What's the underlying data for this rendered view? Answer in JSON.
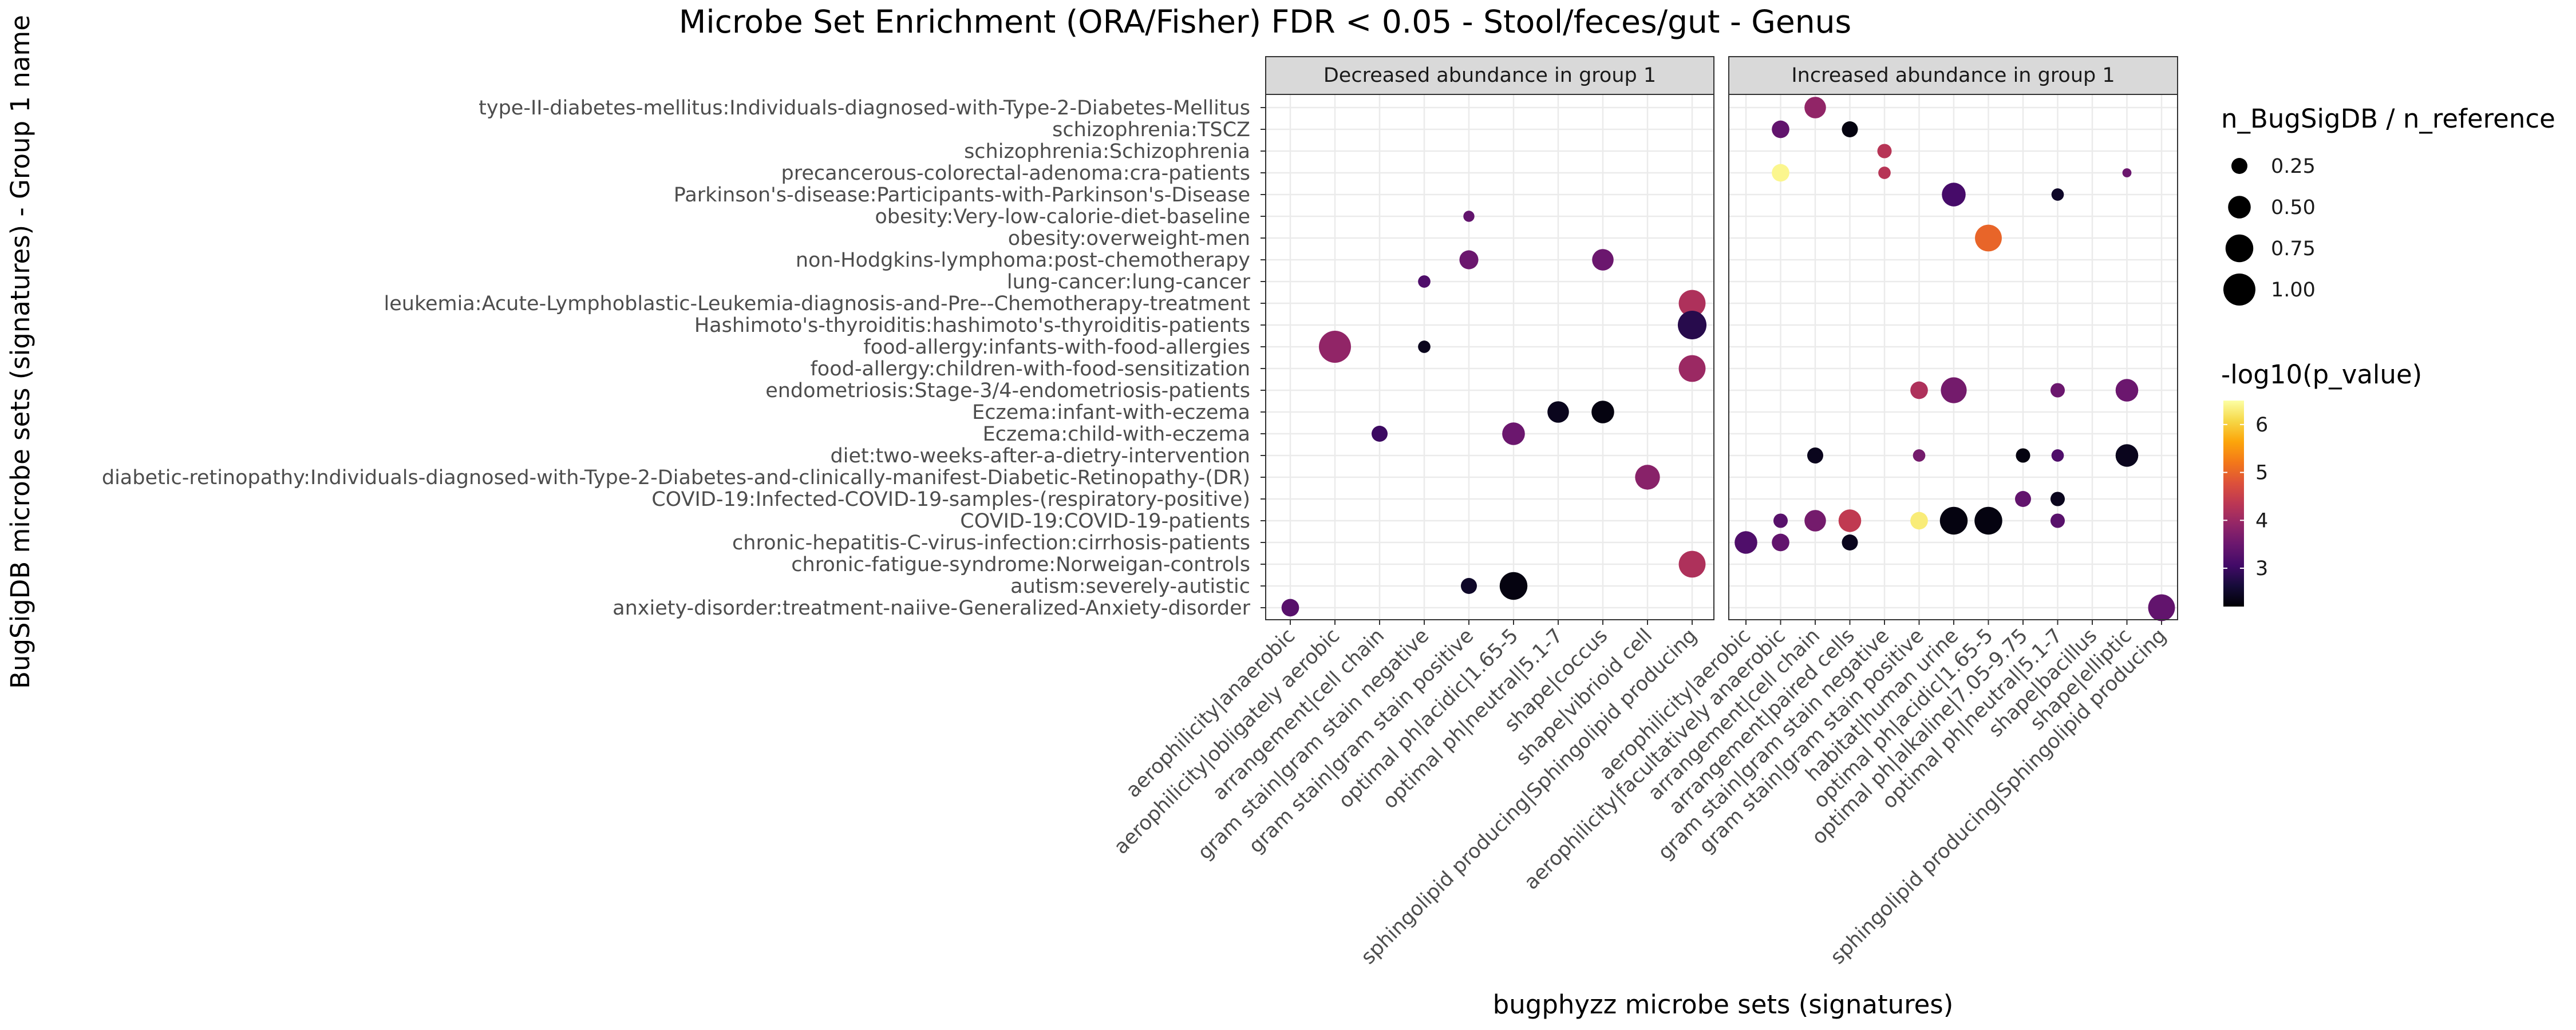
{
  "chart_data": {
    "type": "scatter",
    "title": "Microbe Set Enrichment (ORA/Fisher) FDR < 0.05 - Stool/feces/gut - Genus",
    "xlabel": "bugphyzz microbe sets (signatures)",
    "ylabel": "BugSigDB microbe sets (signatures) - Group 1 name",
    "y_categories": [
      "type-II-diabetes-mellitus:Individuals-diagnosed-with-Type-2-Diabetes-Mellitus",
      "schizophrenia:TSCZ",
      "schizophrenia:Schizophrenia",
      "precancerous-colorectal-adenoma:cra-patients",
      "Parkinson's-disease:Participants-with-Parkinson's-Disease",
      "obesity:Very-low-calorie-diet-baseline",
      "obesity:overweight-men",
      "non-Hodgkins-lymphoma:post-chemotherapy",
      "lung-cancer:lung-cancer",
      "leukemia:Acute-Lymphoblastic-Leukemia-diagnosis-and-Pre--Chemotherapy-treatment",
      "Hashimoto's-thyroiditis:hashimoto's-thyroiditis-patients",
      "food-allergy:infants-with-food-allergies",
      "food-allergy:children-with-food-sensitization",
      "endometriosis:Stage-3/4-endometriosis-patients",
      "Eczema:infant-with-eczema",
      "Eczema:child-with-eczema",
      "diet:two-weeks-after-a-dietry-intervention",
      "diabetic-retinopathy:Individuals-diagnosed-with-Type-2-Diabetes-and-clinically-manifest-Diabetic-Retinopathy-(DR)",
      "COVID-19:Infected-COVID-19-samples-(respiratory-positive)",
      "COVID-19:COVID-19-patients",
      "chronic-hepatitis-C-virus-infection:cirrhosis-patients",
      "chronic-fatigue-syndrome:Norweigan-controls",
      "autism:severely-autistic",
      "anxiety-disorder:treatment-naiive-Generalized-Anxiety-disorder"
    ],
    "panels": [
      {
        "strip": "Decreased abundance in group 1",
        "x_categories": [
          "aerophilicity|anaerobic",
          "aerophilicity|obligately aerobic",
          "arrangement|cell chain",
          "gram stain|gram stain negative",
          "gram stain|gram stain positive",
          "optimal ph|acidic|1.65-5",
          "optimal ph|neutral|5.1-7",
          "shape|coccus",
          "shape|vibrioid cell",
          "sphingolipid producing|Sphingolipid producing"
        ],
        "points": [
          {
            "x": "aerophilicity|obligately aerobic",
            "y": "food-allergy:infants-with-food-allergies",
            "size": 1.0,
            "neg_log10_p": 3.9
          },
          {
            "x": "aerophilicity|anaerobic",
            "y": "anxiety-disorder:treatment-naiive-Generalized-Anxiety-disorder",
            "size": 0.3,
            "neg_log10_p": 3.3
          },
          {
            "x": "arrangement|cell chain",
            "y": "Eczema:child-with-eczema",
            "size": 0.25,
            "neg_log10_p": 3.0
          },
          {
            "x": "gram stain|gram stain negative",
            "y": "lung-cancer:lung-cancer",
            "size": 0.15,
            "neg_log10_p": 3.2
          },
          {
            "x": "gram stain|gram stain negative",
            "y": "food-allergy:infants-with-food-allergies",
            "size": 0.15,
            "neg_log10_p": 2.4
          },
          {
            "x": "gram stain|gram stain positive",
            "y": "obesity:Very-low-calorie-diet-baseline",
            "size": 0.12,
            "neg_log10_p": 3.4
          },
          {
            "x": "gram stain|gram stain positive",
            "y": "non-Hodgkins-lymphoma:post-chemotherapy",
            "size": 0.35,
            "neg_log10_p": 3.5
          },
          {
            "x": "gram stain|gram stain positive",
            "y": "autism:severely-autistic",
            "size": 0.25,
            "neg_log10_p": 2.5
          },
          {
            "x": "optimal ph|acidic|1.65-5",
            "y": "Eczema:child-with-eczema",
            "size": 0.5,
            "neg_log10_p": 3.5
          },
          {
            "x": "optimal ph|acidic|1.65-5",
            "y": "autism:severely-autistic",
            "size": 0.75,
            "neg_log10_p": 2.3
          },
          {
            "x": "optimal ph|neutral|5.1-7",
            "y": "Eczema:infant-with-eczema",
            "size": 0.45,
            "neg_log10_p": 2.4
          },
          {
            "x": "shape|coccus",
            "y": "non-Hodgkins-lymphoma:post-chemotherapy",
            "size": 0.45,
            "neg_log10_p": 3.5
          },
          {
            "x": "shape|coccus",
            "y": "Eczema:infant-with-eczema",
            "size": 0.5,
            "neg_log10_p": 2.3
          },
          {
            "x": "shape|vibrioid cell",
            "y": "diabetic-retinopathy:Individuals-diagnosed-with-Type-2-Diabetes-and-clinically-manifest-Diabetic-Retinopathy-(DR)",
            "size": 0.6,
            "neg_log10_p": 3.8
          },
          {
            "x": "sphingolipid producing|Sphingolipid producing",
            "y": "leukemia:Acute-Lymphoblastic-Leukemia-diagnosis-and-Pre--Chemotherapy-treatment",
            "size": 0.7,
            "neg_log10_p": 4.2
          },
          {
            "x": "sphingolipid producing|Sphingolipid producing",
            "y": "Hashimoto's-thyroiditis:hashimoto's-thyroiditis-patients",
            "size": 0.8,
            "neg_log10_p": 2.8
          },
          {
            "x": "sphingolipid producing|Sphingolipid producing",
            "y": "food-allergy:children-with-food-sensitization",
            "size": 0.7,
            "neg_log10_p": 4.0
          },
          {
            "x": "sphingolipid producing|Sphingolipid producing",
            "y": "chronic-fatigue-syndrome:Norweigan-controls",
            "size": 0.7,
            "neg_log10_p": 4.2
          }
        ]
      },
      {
        "strip": "Increased abundance in group 1",
        "x_categories": [
          "aerophilicity|aerobic",
          "aerophilicity|facultatively anaerobic",
          "arrangement|cell chain",
          "arrangement|paired cells",
          "gram stain|gram stain negative",
          "gram stain|gram stain positive",
          "habitat|human urine",
          "optimal ph|acidic|1.65-5",
          "optimal ph|alkaline|7.05-9.75",
          "optimal ph|neutral|5.1-7",
          "shape|bacillus",
          "shape|elliptic",
          "sphingolipid producing|Sphingolipid producing"
        ],
        "points": [
          {
            "x": "arrangement|cell chain",
            "y": "type-II-diabetes-mellitus:Individuals-diagnosed-with-Type-2-Diabetes-Mellitus",
            "size": 0.45,
            "neg_log10_p": 3.9
          },
          {
            "x": "aerophilicity|facultatively anaerobic",
            "y": "schizophrenia:TSCZ",
            "size": 0.3,
            "neg_log10_p": 3.4
          },
          {
            "x": "arrangement|paired cells",
            "y": "schizophrenia:TSCZ",
            "size": 0.25,
            "neg_log10_p": 2.3
          },
          {
            "x": "gram stain|gram stain negative",
            "y": "schizophrenia:Schizophrenia",
            "size": 0.2,
            "neg_log10_p": 4.3
          },
          {
            "x": "aerophilicity|facultatively anaerobic",
            "y": "precancerous-colorectal-adenoma:cra-patients",
            "size": 0.3,
            "neg_log10_p": 6.4
          },
          {
            "x": "gram stain|gram stain negative",
            "y": "precancerous-colorectal-adenoma:cra-patients",
            "size": 0.15,
            "neg_log10_p": 4.3
          },
          {
            "x": "shape|elliptic",
            "y": "precancerous-colorectal-adenoma:cra-patients",
            "size": 0.08,
            "neg_log10_p": 3.5
          },
          {
            "x": "habitat|human urine",
            "y": "Parkinson's-disease:Participants-with-Parkinson's-Disease",
            "size": 0.55,
            "neg_log10_p": 3.1
          },
          {
            "x": "optimal ph|neutral|5.1-7",
            "y": "Parkinson's-disease:Participants-with-Parkinson's-Disease",
            "size": 0.15,
            "neg_log10_p": 2.5
          },
          {
            "x": "optimal ph|acidic|1.65-5",
            "y": "obesity:overweight-men",
            "size": 0.7,
            "neg_log10_p": 5.0
          },
          {
            "x": "gram stain|gram stain positive",
            "y": "endometriosis:Stage-3/4-endometriosis-patients",
            "size": 0.3,
            "neg_log10_p": 4.2
          },
          {
            "x": "habitat|human urine",
            "y": "endometriosis:Stage-3/4-endometriosis-patients",
            "size": 0.65,
            "neg_log10_p": 3.6
          },
          {
            "x": "optimal ph|neutral|5.1-7",
            "y": "endometriosis:Stage-3/4-endometriosis-patients",
            "size": 0.2,
            "neg_log10_p": 3.5
          },
          {
            "x": "shape|elliptic",
            "y": "endometriosis:Stage-3/4-endometriosis-patients",
            "size": 0.5,
            "neg_log10_p": 3.5
          },
          {
            "x": "arrangement|cell chain",
            "y": "diet:two-weeks-after-a-dietry-intervention",
            "size": 0.25,
            "neg_log10_p": 2.4
          },
          {
            "x": "gram stain|gram stain positive",
            "y": "diet:two-weeks-after-a-dietry-intervention",
            "size": 0.15,
            "neg_log10_p": 3.6
          },
          {
            "x": "optimal ph|alkaline|7.05-9.75",
            "y": "diet:two-weeks-after-a-dietry-intervention",
            "size": 0.2,
            "neg_log10_p": 2.3
          },
          {
            "x": "optimal ph|neutral|5.1-7",
            "y": "diet:two-weeks-after-a-dietry-intervention",
            "size": 0.15,
            "neg_log10_p": 3.2
          },
          {
            "x": "shape|elliptic",
            "y": "diet:two-weeks-after-a-dietry-intervention",
            "size": 0.5,
            "neg_log10_p": 2.4
          },
          {
            "x": "optimal ph|alkaline|7.05-9.75",
            "y": "COVID-19:Infected-COVID-19-samples-(respiratory-positive)",
            "size": 0.25,
            "neg_log10_p": 3.4
          },
          {
            "x": "optimal ph|neutral|5.1-7",
            "y": "COVID-19:Infected-COVID-19-samples-(respiratory-positive)",
            "size": 0.2,
            "neg_log10_p": 2.4
          },
          {
            "x": "aerophilicity|facultatively anaerobic",
            "y": "COVID-19:COVID-19-patients",
            "size": 0.2,
            "neg_log10_p": 3.3
          },
          {
            "x": "arrangement|cell chain",
            "y": "COVID-19:COVID-19-patients",
            "size": 0.45,
            "neg_log10_p": 3.6
          },
          {
            "x": "arrangement|paired cells",
            "y": "COVID-19:COVID-19-patients",
            "size": 0.5,
            "neg_log10_p": 4.4
          },
          {
            "x": "gram stain|gram stain positive",
            "y": "COVID-19:COVID-19-patients",
            "size": 0.3,
            "neg_log10_p": 6.3
          },
          {
            "x": "habitat|human urine",
            "y": "COVID-19:COVID-19-patients",
            "size": 0.75,
            "neg_log10_p": 2.3
          },
          {
            "x": "optimal ph|acidic|1.65-5",
            "y": "COVID-19:COVID-19-patients",
            "size": 0.75,
            "neg_log10_p": 2.3
          },
          {
            "x": "optimal ph|neutral|5.1-7",
            "y": "COVID-19:COVID-19-patients",
            "size": 0.2,
            "neg_log10_p": 3.3
          },
          {
            "x": "aerophilicity|aerobic",
            "y": "chronic-hepatitis-C-virus-infection:cirrhosis-patients",
            "size": 0.5,
            "neg_log10_p": 3.2
          },
          {
            "x": "aerophilicity|facultatively anaerobic",
            "y": "chronic-hepatitis-C-virus-infection:cirrhosis-patients",
            "size": 0.3,
            "neg_log10_p": 3.4
          },
          {
            "x": "arrangement|paired cells",
            "y": "chronic-hepatitis-C-virus-infection:cirrhosis-patients",
            "size": 0.25,
            "neg_log10_p": 2.4
          },
          {
            "x": "sphingolipid producing|Sphingolipid producing",
            "y": "anxiety-disorder:treatment-naiive-Generalized-Anxiety-disorder",
            "size": 0.7,
            "neg_log10_p": 3.4
          }
        ]
      }
    ],
    "legend_size": {
      "title": "n_BugSigDB / n_reference",
      "breaks": [
        0.25,
        0.5,
        0.75,
        1.0
      ],
      "labels": [
        "0.25",
        "0.50",
        "0.75",
        "1.00"
      ]
    },
    "legend_color": {
      "title": "-log10(p_value)",
      "breaks": [
        3,
        4,
        5,
        6
      ],
      "labels": [
        "3",
        "4",
        "5",
        "6"
      ],
      "range": [
        2.2,
        6.5
      ],
      "palette": "inferno"
    },
    "colors": {
      "panel_border": "#333333",
      "strip_fill": "#d9d9d9",
      "grid": "#ebebeb",
      "text": "#4d4d4d",
      "title": "#000000"
    }
  }
}
